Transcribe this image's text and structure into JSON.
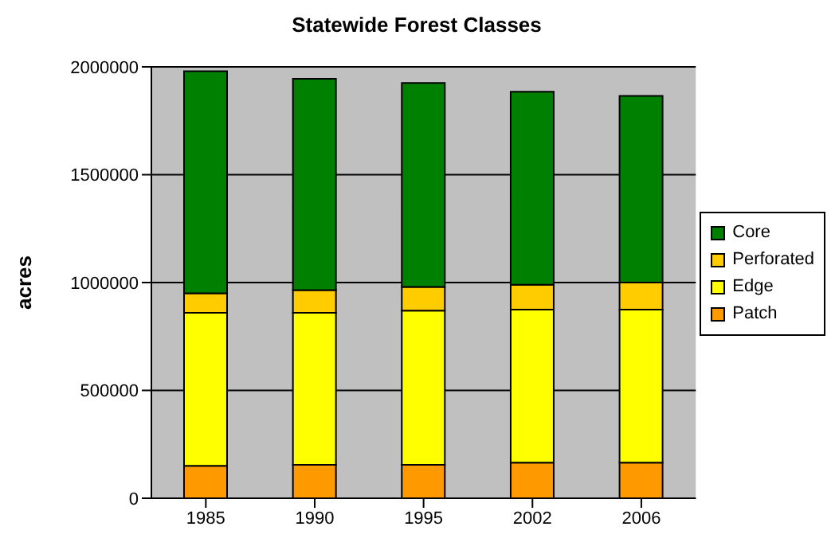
{
  "chart_data": {
    "type": "bar",
    "title": "Statewide Forest Classes",
    "ylabel": "acres",
    "categories": [
      "1985",
      "1990",
      "1995",
      "2002",
      "2006"
    ],
    "stacked": true,
    "series": [
      {
        "name": "Patch",
        "color": "#ff9900",
        "values": [
          150000,
          155000,
          155000,
          165000,
          165000
        ]
      },
      {
        "name": "Edge",
        "color": "#ffff00",
        "values": [
          710000,
          705000,
          715000,
          710000,
          710000
        ]
      },
      {
        "name": "Perforated",
        "color": "#ffcc00",
        "values": [
          90000,
          105000,
          110000,
          115000,
          125000
        ]
      },
      {
        "name": "Core",
        "color": "#008000",
        "values": [
          1030000,
          980000,
          945000,
          895000,
          865000
        ]
      }
    ],
    "ylim": [
      0,
      2000000
    ],
    "yticks": [
      0,
      500000,
      1000000,
      1500000,
      2000000
    ],
    "grid": "y",
    "legend": "right"
  }
}
